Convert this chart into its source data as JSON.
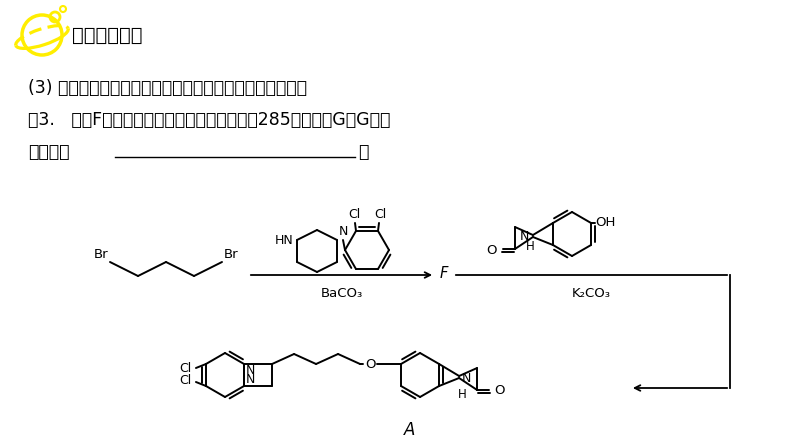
{
  "bg_color": "#ffffff",
  "title_text": "方法技巧总结",
  "line1": "(3) 根据已知物质的结构简式和未知物的相对分子质量判断",
  "line2": "例3.   合成F时还可能生成一种相对分子质量为285的副产物G，G的结",
  "line3": "构简式为",
  "dot_text": "。",
  "baco3": "BaCO₃",
  "k2co3": "K₂CO₃",
  "product_label": "A",
  "text_color": "#000000",
  "planet_color": "#ffff00",
  "figw": 7.94,
  "figh": 4.47,
  "dpi": 100
}
